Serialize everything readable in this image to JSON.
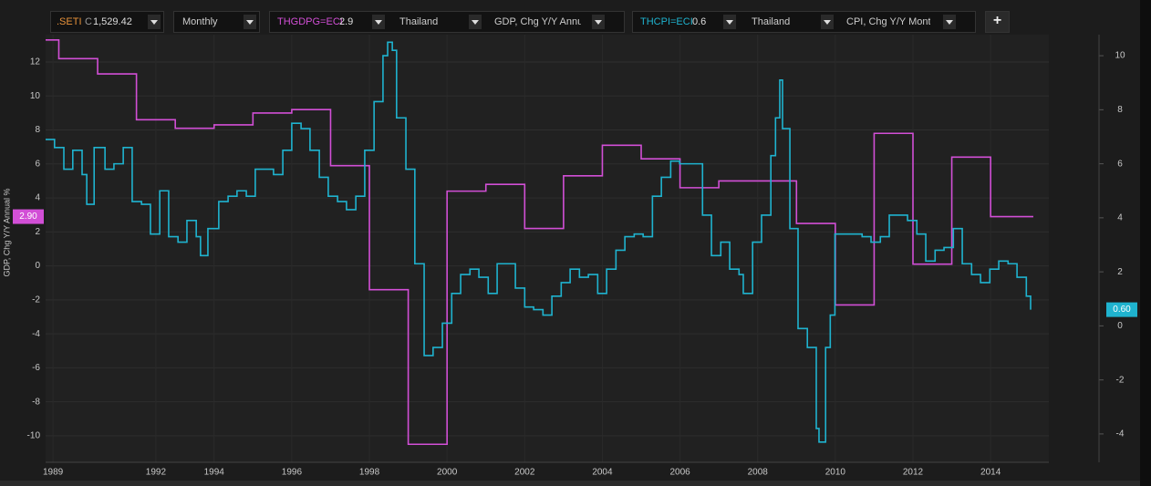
{
  "toolbar": {
    "instrument": ".SETI",
    "price_prefix": "C",
    "price": "1,529.42",
    "interval": "Monthly",
    "series1": {
      "ric": "THGDPG=ECI",
      "value": "2.9",
      "country": "Thailand",
      "field": "GDP, Chg Y/Y Annu"
    },
    "series2": {
      "ric": "THCPI=ECI",
      "value": "0.6",
      "country": "Thailand",
      "field": "CPI, Chg Y/Y Month"
    },
    "add_button": "+"
  },
  "chart_data": {
    "type": "line",
    "step": true,
    "grid": true,
    "ylabel": "GDP, Chg Y/Y Annual %",
    "xlim": [
      1989.66,
      2015.5
    ],
    "xticks": [
      {
        "value": 1989.85,
        "label": "1989"
      },
      {
        "value": 1992.5,
        "label": "1992"
      },
      1994,
      1996,
      1998,
      2000,
      2002,
      2004,
      2006,
      2008,
      2010,
      2012,
      2014
    ],
    "ylim": [
      -11.56,
      13.61
    ],
    "yticks": [
      12,
      10,
      8,
      6,
      4,
      2,
      0,
      -2,
      -4,
      -6,
      -8,
      -10
    ],
    "y2lim": [
      -5.05,
      10.78
    ],
    "y2ticks": [
      10,
      8,
      6,
      4,
      2,
      0,
      -2,
      -4
    ],
    "series": [
      {
        "name": "THGDPG=ECI",
        "color": "#d24fd6",
        "last_label": "2.90",
        "x": [
          1989.66,
          1990,
          1991,
          1992,
          1993,
          1994,
          1995,
          1996,
          1997,
          1998,
          1999,
          2000,
          2001,
          2002,
          2003,
          2004,
          2005,
          2006,
          2007,
          2008,
          2009,
          2010,
          2011,
          2012,
          2013,
          2014,
          2015.1
        ],
        "values": [
          13.3,
          12.2,
          11.3,
          8.6,
          8.1,
          8.3,
          9.0,
          9.2,
          5.9,
          -1.4,
          -10.5,
          4.4,
          4.8,
          2.2,
          5.3,
          7.1,
          6.3,
          4.6,
          5.0,
          5.0,
          2.5,
          -2.3,
          7.8,
          0.1,
          6.4,
          2.9,
          2.9
        ]
      },
      {
        "name": "THCPI=ECI",
        "color": "#1fb3cf",
        "axis": "y2",
        "last_label": "0.60",
        "x": [
          1989.66,
          1989.89,
          1990.13,
          1990.36,
          1990.6,
          1990.72,
          1990.91,
          1991.19,
          1991.42,
          1991.66,
          1991.89,
          1992.13,
          1992.36,
          1992.6,
          1992.83,
          1993.07,
          1993.3,
          1993.54,
          1993.65,
          1993.84,
          1994.12,
          1994.36,
          1994.59,
          1994.83,
          1995.06,
          1995.3,
          1995.53,
          1995.77,
          1996.0,
          1996.24,
          1996.47,
          1996.71,
          1996.94,
          1997.18,
          1997.41,
          1997.65,
          1997.88,
          1998.12,
          1998.35,
          1998.47,
          1998.59,
          1998.7,
          1998.94,
          1999.17,
          1999.41,
          1999.64,
          1999.88,
          2000.12,
          2000.35,
          2000.59,
          2000.82,
          2001.06,
          2001.29,
          2001.53,
          2001.76,
          2002.0,
          2002.23,
          2002.47,
          2002.7,
          2002.94,
          2003.17,
          2003.41,
          2003.64,
          2003.88,
          2004.11,
          2004.35,
          2004.58,
          2004.82,
          2005.05,
          2005.29,
          2005.52,
          2005.76,
          2005.99,
          2006.23,
          2006.46,
          2006.58,
          2006.81,
          2007.05,
          2007.28,
          2007.52,
          2007.63,
          2007.87,
          2008.1,
          2008.34,
          2008.46,
          2008.57,
          2008.64,
          2008.83,
          2009.04,
          2009.28,
          2009.51,
          2009.58,
          2009.75,
          2009.87,
          2009.99,
          2010.22,
          2010.45,
          2010.69,
          2010.92,
          2011.16,
          2011.39,
          2011.63,
          2011.86,
          2012.1,
          2012.33,
          2012.57,
          2012.8,
          2013.04,
          2013.27,
          2013.51,
          2013.74,
          2013.98,
          2014.21,
          2014.45,
          2014.68,
          2014.92,
          2015.03
        ],
        "values": [
          6.9,
          6.6,
          5.8,
          6.5,
          5.6,
          4.5,
          6.6,
          5.8,
          6.0,
          6.6,
          4.6,
          4.5,
          3.4,
          5.0,
          3.3,
          3.1,
          3.9,
          3.3,
          2.6,
          3.6,
          4.6,
          4.8,
          5.0,
          4.8,
          5.8,
          5.8,
          5.6,
          6.5,
          7.5,
          7.3,
          6.5,
          5.5,
          4.8,
          4.6,
          4.3,
          4.8,
          6.5,
          8.3,
          10.0,
          10.5,
          10.2,
          7.7,
          5.8,
          2.3,
          -1.1,
          -0.8,
          0.1,
          1.2,
          1.9,
          2.1,
          1.8,
          1.2,
          2.3,
          2.3,
          1.4,
          0.7,
          0.6,
          0.4,
          1.1,
          1.6,
          2.1,
          1.8,
          1.9,
          1.2,
          2.1,
          2.8,
          3.3,
          3.4,
          3.3,
          4.8,
          5.5,
          6.1,
          6.0,
          6.0,
          6.0,
          4.1,
          2.6,
          3.1,
          2.1,
          1.9,
          1.2,
          3.1,
          4.1,
          6.3,
          7.7,
          9.1,
          7.3,
          3.6,
          -0.1,
          -0.8,
          -3.8,
          -4.3,
          -0.8,
          0.4,
          3.4,
          3.4,
          3.4,
          3.3,
          3.1,
          3.3,
          4.1,
          4.1,
          3.9,
          3.4,
          2.4,
          2.8,
          2.9,
          3.6,
          2.3,
          1.9,
          1.6,
          2.1,
          2.4,
          2.3,
          1.8,
          1.1,
          0.6
        ]
      }
    ]
  }
}
